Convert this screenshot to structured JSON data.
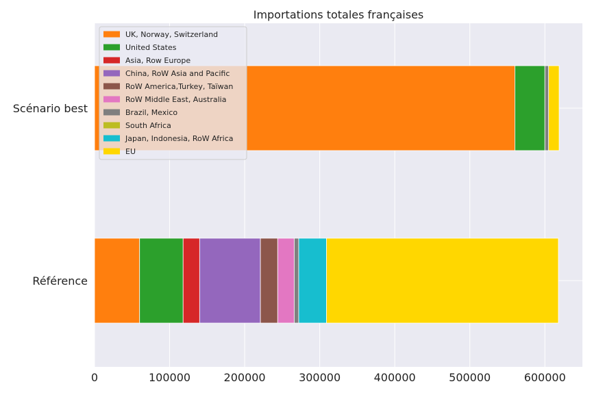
{
  "chart_data": {
    "type": "bar",
    "orientation": "horizontal",
    "stacked": true,
    "title": "Importations totales françaises",
    "xlabel": "",
    "ylabel": "",
    "categories": [
      "Scénario best",
      "Référence"
    ],
    "xlim": [
      0,
      650000
    ],
    "xticks": [
      0,
      100000,
      200000,
      300000,
      400000,
      500000,
      600000
    ],
    "xtick_labels": [
      "0",
      "100000",
      "200000",
      "300000",
      "400000",
      "500000",
      "600000"
    ],
    "grid": true,
    "legend_position": "top-left",
    "series": [
      {
        "name": "UK, Norway, Switzerland",
        "color": "#ff7f0e",
        "values": [
          560000,
          60000
        ]
      },
      {
        "name": "United States",
        "color": "#2ca02c",
        "values": [
          40000,
          58000
        ]
      },
      {
        "name": "Asia, Row Europe",
        "color": "#d62728",
        "values": [
          0,
          22000
        ]
      },
      {
        "name": "China, RoW Asia and Pacific",
        "color": "#9467bd",
        "values": [
          0,
          81000
        ]
      },
      {
        "name": "RoW America,Turkey, Taïwan",
        "color": "#8c564b",
        "values": [
          0,
          23000
        ]
      },
      {
        "name": "RoW Middle East, Australia",
        "color": "#e377c2",
        "values": [
          0,
          22000
        ]
      },
      {
        "name": "Brazil, Mexico",
        "color": "#7f7f7f",
        "values": [
          5000,
          6000
        ]
      },
      {
        "name": "South Africa",
        "color": "#bcbd22",
        "values": [
          0,
          0
        ]
      },
      {
        "name": "Japan, Indonesia, RoW Africa",
        "color": "#17becf",
        "values": [
          0,
          37000
        ]
      },
      {
        "name": "EU",
        "color": "#ffd700",
        "values": [
          14000,
          309000
        ]
      }
    ]
  }
}
